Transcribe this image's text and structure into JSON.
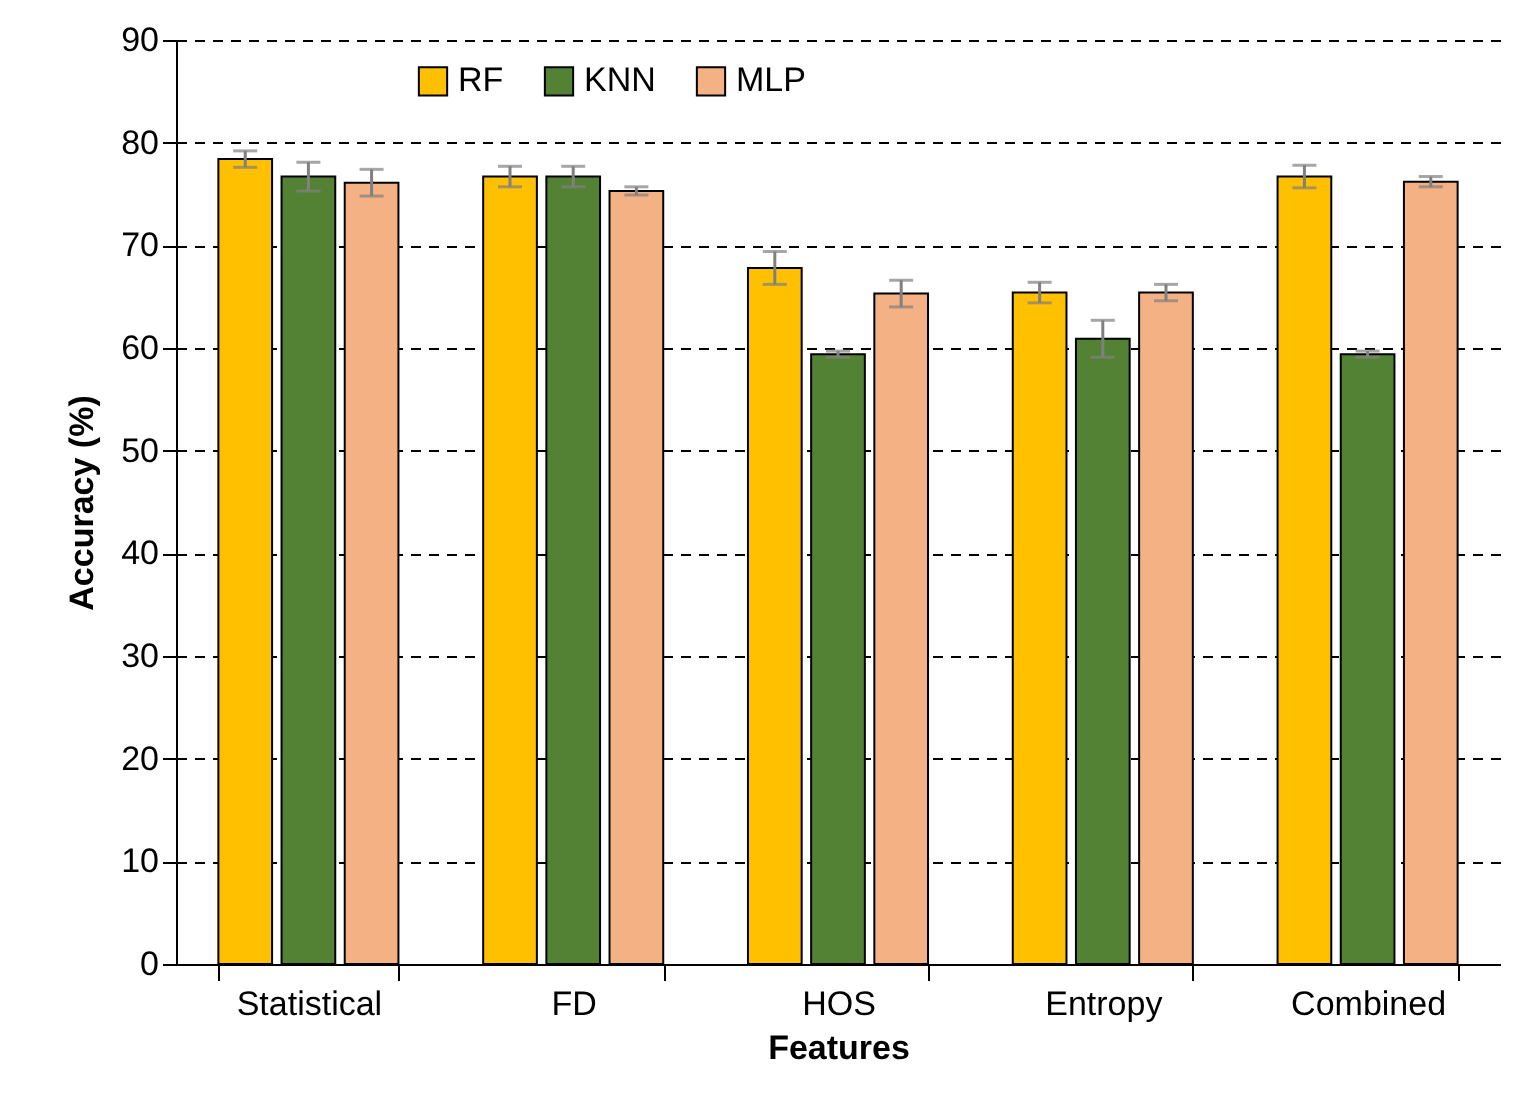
{
  "chart_data": {
    "type": "bar",
    "xlabel": "Features",
    "ylabel": "Accuracy (%)",
    "categories": [
      "Statistical",
      "FD",
      "HOS",
      "Entropy",
      "Combined"
    ],
    "series": [
      {
        "name": "RF",
        "color": "#ffc000",
        "values": [
          78.4,
          76.7,
          67.8,
          65.4,
          76.7
        ],
        "errors": [
          0.8,
          1.0,
          1.6,
          1.0,
          1.1
        ]
      },
      {
        "name": "KNN",
        "color": "#548235",
        "values": [
          76.7,
          76.7,
          59.4,
          60.9,
          59.4
        ],
        "errors": [
          1.4,
          1.0,
          0.3,
          1.8,
          0.3
        ]
      },
      {
        "name": "MLP",
        "color": "#f4b183",
        "values": [
          76.1,
          75.3,
          65.3,
          65.4,
          76.2
        ],
        "errors": [
          1.3,
          0.4,
          1.3,
          0.8,
          0.5
        ]
      }
    ],
    "ylim": [
      0,
      90
    ],
    "yticks": [
      0,
      10,
      20,
      30,
      40,
      50,
      60,
      70,
      80,
      90
    ],
    "grid": "y",
    "legend": "top left"
  }
}
